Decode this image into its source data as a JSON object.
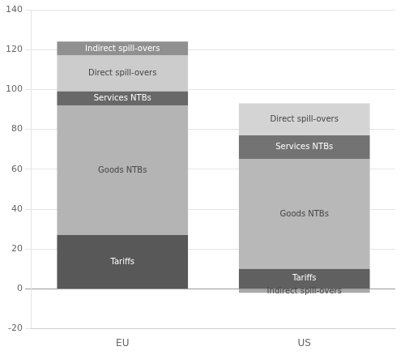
{
  "chart_data": {
    "type": "bar",
    "stacked": true,
    "categories": [
      "EU",
      "US"
    ],
    "series": [
      {
        "name": "Tariffs",
        "colors": [
          "#585858",
          "#606060"
        ],
        "values": [
          27,
          10
        ]
      },
      {
        "name": "Goods NTBs",
        "colors": [
          "#b4b4b4",
          "#b8b8b8"
        ],
        "values": [
          65,
          55
        ]
      },
      {
        "name": "Services NTBs",
        "colors": [
          "#686868",
          "#737373"
        ],
        "values": [
          7,
          12
        ]
      },
      {
        "name": "Direct spill-overs",
        "colors": [
          "#cccccc",
          "#d4d4d4"
        ],
        "values": [
          18,
          16
        ]
      },
      {
        "name": "Indirect spill-overs",
        "colors": [
          "#909090",
          "#a8a8a8"
        ],
        "values": [
          7,
          -2
        ]
      }
    ],
    "ylim": [
      -20,
      140
    ],
    "yticks": [
      -20,
      0,
      20,
      40,
      60,
      80,
      100,
      120,
      140
    ],
    "grid": true
  }
}
